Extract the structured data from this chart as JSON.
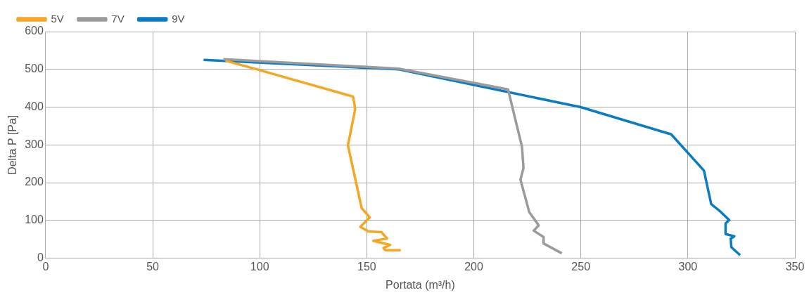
{
  "chart_data": {
    "type": "line",
    "xlabel": "Portata (m³/h)",
    "ylabel": "Delta P [Pa]",
    "xlim": [
      0,
      350
    ],
    "xticks": [
      0,
      50,
      100,
      150,
      200,
      250,
      300,
      350
    ],
    "ylim": [
      0,
      600
    ],
    "yticks": [
      0,
      100,
      200,
      300,
      400,
      500,
      600
    ],
    "grid": true,
    "legend": "top left",
    "marker": "none",
    "line_style": "solid",
    "series": [
      {
        "name": "5V",
        "color": "#f5a623",
        "x": [
          84,
          100,
          143.6,
          144.6,
          141.2,
          147.6,
          151.4,
          147,
          150.7,
          156.8,
          159.5,
          153,
          160.9,
          157.8,
          158.8,
          165.9
        ],
        "values": [
          523,
          498,
          428,
          395,
          299,
          133,
          108,
          83,
          71,
          69,
          52,
          46,
          35,
          27,
          21,
          21
        ]
      },
      {
        "name": "7V",
        "color": "#9b9b9b",
        "x": [
          83,
          164.9,
          216,
          222.5,
          223.2,
          221.8,
          225.9,
          230.3,
          228,
          232.6,
          232.6,
          241.1
        ],
        "values": [
          527,
          502,
          447,
          295,
          239,
          208,
          122,
          87,
          73,
          56,
          39,
          13
        ]
      },
      {
        "name": "9V",
        "color": "#0a7cc4",
        "x": [
          73.8,
          165,
          249.9,
          292.2,
          307.5,
          310.9,
          314.9,
          319.3,
          317.6,
          317.6,
          321.7,
          320,
          320.3,
          324.4
        ],
        "values": [
          525,
          500,
          400,
          328,
          232,
          143,
          125,
          101,
          92,
          64,
          58,
          52,
          29,
          8
        ]
      }
    ]
  }
}
